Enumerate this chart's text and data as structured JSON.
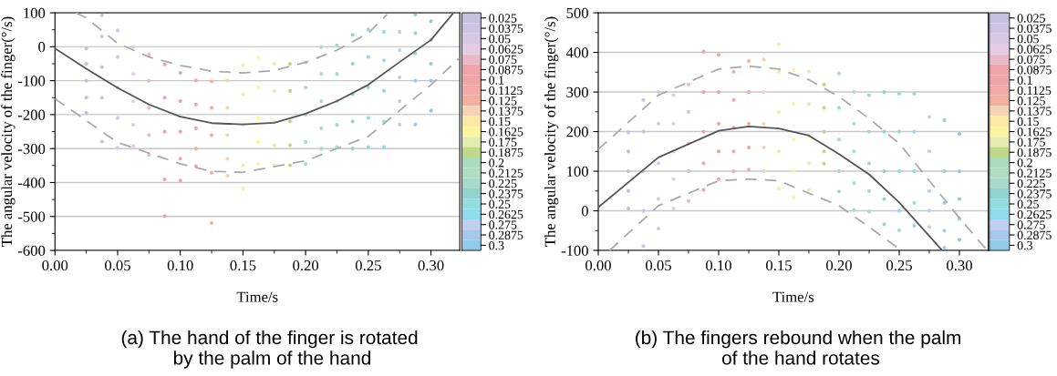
{
  "chart_data": [
    {
      "type": "scatter",
      "title": "(a) The hand of the finger is rotated\n by the palm of the hand",
      "xlabel": "Time/s",
      "ylabel": "The angular velocity of the finger(°/s)",
      "xlim": [
        0,
        0.323
      ],
      "xticks": [
        {
          "value": 0,
          "label": "0.00"
        },
        {
          "value": 0.05,
          "label": "0.05"
        },
        {
          "value": 0.1,
          "label": "0.10"
        },
        {
          "value": 0.15,
          "label": "0.15"
        },
        {
          "value": 0.2,
          "label": "0.20"
        },
        {
          "value": 0.25,
          "label": "0.25"
        },
        {
          "value": 0.3,
          "label": "0.30"
        }
      ],
      "ylim": [
        -600,
        100
      ],
      "yticks": [
        -600,
        -500,
        -400,
        -300,
        -200,
        -100,
        0,
        100
      ],
      "grid": "y",
      "clim": [
        0.30625,
        0.01875
      ],
      "cticks": [
        0.025,
        0.0375,
        0.05,
        0.0625,
        0.075,
        0.0875,
        0.1,
        0.1125,
        0.125,
        0.1375,
        0.15,
        0.1625,
        0.175,
        0.1875,
        0.2,
        0.2125,
        0.225,
        0.2375,
        0.25,
        0.2625,
        0.275,
        0.2875,
        0.3
      ],
      "colors": [
        "#c5c0e0",
        "#cdc3e3",
        "#d8c8e6",
        "#e3cde6",
        "#e9b9c8",
        "#f0a3a8",
        "#f2a5a8",
        "#f4a8a8",
        "#f4b09e",
        "#f7d2b5",
        "#fbe9a6",
        "#fdf59d",
        "#e6ecb1",
        "#bfd98a",
        "#a9dcbd",
        "#b0dcc0",
        "#a9d8cc",
        "#92d3cf",
        "#92dde0",
        "#8fdced",
        "#bfcff0",
        "#a7c8ea",
        "#91cbe8"
      ],
      "series": [
        {
          "marker": "circle",
          "x": [
            0.025,
            0.025,
            0.025,
            0.025,
            0.025,
            0.0375,
            0.0375,
            0.0375,
            0.0375,
            0.0375,
            0.05,
            0.05,
            0.05,
            0.05,
            0.05,
            0.0625,
            0.0625,
            0.0625,
            0.0625,
            0.0625,
            0.075,
            0.075,
            0.075,
            0.075,
            0.075,
            0.0875,
            0.0875,
            0.0875,
            0.0875,
            0.0875,
            0.1,
            0.1,
            0.1,
            0.1,
            0.1,
            0.1125,
            0.1125,
            0.1125,
            0.1125,
            0.1125,
            0.125,
            0.125,
            0.125,
            0.125,
            0.125,
            0.1375,
            0.1375,
            0.1375,
            0.1375,
            0.1375,
            0.15,
            0.15,
            0.15,
            0.15,
            0.15,
            0.1625,
            0.1625,
            0.1625,
            0.1625,
            0.1625,
            0.175,
            0.175,
            0.175,
            0.175,
            0.175,
            0.1875,
            0.1875,
            0.1875,
            0.1875,
            0.1875,
            0.2,
            0.2,
            0.2,
            0.2,
            0.2,
            0.2125,
            0.2125,
            0.2125,
            0.2125,
            0.2125,
            0.225,
            0.225,
            0.225,
            0.225,
            0.225,
            0.2375,
            0.2375,
            0.2375,
            0.2375,
            0.2375,
            0.25,
            0.25,
            0.25,
            0.25,
            0.25,
            0.2625,
            0.2625,
            0.2625,
            0.2625,
            0.2625,
            0.275,
            0.275,
            0.275,
            0.275,
            0.275,
            0.2875,
            0.2875,
            0.2875,
            0.2875,
            0.2875,
            0.3,
            0.3,
            0.3,
            0.3,
            0.3
          ],
          "values": [
            -5,
            -50,
            -100,
            -150,
            -195,
            93,
            30,
            -60,
            -150,
            -280,
            48,
            -30,
            -120,
            -210,
            -298,
            -1,
            -80,
            -160,
            -230,
            -293,
            -23,
            -100,
            -180,
            -260,
            -318,
            -52,
            -150,
            -250,
            -391,
            -499,
            -77,
            -160,
            -250,
            -330,
            -394,
            -99,
            -170,
            -240,
            -300,
            -352,
            -102,
            -180,
            -260,
            -371,
            -519,
            -99,
            -180,
            -260,
            -330,
            -380,
            -54,
            -140,
            -230,
            -349,
            -418,
            -32,
            -120,
            -210,
            -280,
            -345,
            -50,
            -130,
            -220,
            -290,
            -349,
            -50,
            -130,
            -220,
            -290,
            -349,
            -46,
            -120,
            -200,
            -280,
            -345,
            -1,
            -80,
            -160,
            -240,
            -300,
            4,
            -80,
            -160,
            -230,
            -296,
            35,
            -50,
            -140,
            -220,
            -300,
            51,
            -30,
            -120,
            -210,
            -296,
            44,
            -40,
            -130,
            -220,
            -296,
            44,
            -10,
            -90,
            -160,
            -229,
            95,
            40,
            -20,
            -100,
            -229,
            75,
            20,
            -50,
            -100,
            -188
          ],
          "colors": [
            "#c5c0e0",
            "#c5c0e0",
            "#c5c0e0",
            "#c5c0e0",
            "#c5c0e0",
            "#cdc3e3",
            "#cdc3e3",
            "#cdc3e3",
            "#cdc3e3",
            "#cdc3e3",
            "#d8c8e6",
            "#d8c8e6",
            "#d8c8e6",
            "#d8c8e6",
            "#d8c8e6",
            "#e3cde6",
            "#e3cde6",
            "#e3cde6",
            "#e3cde6",
            "#e3cde6",
            "#e9b9c8",
            "#e9b9c8",
            "#e9b9c8",
            "#e9b9c8",
            "#e9b9c8",
            "#f0a3a8",
            "#f0a3a8",
            "#f0a3a8",
            "#f0a3a8",
            "#f0a3a8",
            "#f2a5a8",
            "#f2a5a8",
            "#f2a5a8",
            "#f2a5a8",
            "#f2a5a8",
            "#f4a8a8",
            "#f4a8a8",
            "#f4a8a8",
            "#f4a8a8",
            "#f4a8a8",
            "#f4b09e",
            "#f4b09e",
            "#f4b09e",
            "#f4b09e",
            "#f4b09e",
            "#f7d2b5",
            "#f7d2b5",
            "#f7d2b5",
            "#f7d2b5",
            "#f7d2b5",
            "#fbe9a6",
            "#fbe9a6",
            "#fbe9a6",
            "#fbe9a6",
            "#fbe9a6",
            "#fdf59d",
            "#fdf59d",
            "#fdf59d",
            "#fdf59d",
            "#fdf59d",
            "#e6ecb1",
            "#e6ecb1",
            "#e6ecb1",
            "#e6ecb1",
            "#e6ecb1",
            "#bfd98a",
            "#bfd98a",
            "#bfd98a",
            "#bfd98a",
            "#bfd98a",
            "#a9dcbd",
            "#a9dcbd",
            "#a9dcbd",
            "#a9dcbd",
            "#a9dcbd",
            "#b0dcc0",
            "#b0dcc0",
            "#b0dcc0",
            "#b0dcc0",
            "#b0dcc0",
            "#a9d8cc",
            "#a9d8cc",
            "#a9d8cc",
            "#a9d8cc",
            "#a9d8cc",
            "#92d3cf",
            "#92d3cf",
            "#92d3cf",
            "#92d3cf",
            "#92d3cf",
            "#92dde0",
            "#92dde0",
            "#92dde0",
            "#92dde0",
            "#92dde0",
            "#8fdced",
            "#8fdced",
            "#8fdced",
            "#8fdced",
            "#8fdced",
            "#bfcff0",
            "#bfcff0",
            "#bfcff0",
            "#bfcff0",
            "#bfcff0",
            "#a7c8ea",
            "#a7c8ea",
            "#a7c8ea",
            "#a7c8ea",
            "#a7c8ea",
            "#91cbe8",
            "#91cbe8",
            "#91cbe8",
            "#91cbe8",
            "#91cbe8"
          ]
        },
        {
          "type": "line",
          "marker": "none",
          "color": "#555555",
          "line_style": "solid",
          "x": [
            0,
            0.025,
            0.05,
            0.075,
            0.1,
            0.125,
            0.15,
            0.175,
            0.2,
            0.225,
            0.25,
            0.275,
            0.3,
            0.318
          ],
          "values": [
            -5,
            -65,
            -121,
            -170,
            -206,
            -225,
            -229,
            -224,
            -197,
            -160,
            -112,
            -45,
            20,
            100
          ]
        },
        {
          "type": "line",
          "marker": "none",
          "color": "#aaaaaa",
          "line_style": "dashed",
          "x": [
            0.0166,
            0.025,
            0.05,
            0.075,
            0.1,
            0.125,
            0.15,
            0.175,
            0.2,
            0.225,
            0.25,
            0.265
          ],
          "values": [
            100,
            85,
            10,
            -30,
            -55,
            -72,
            -77,
            -70,
            -46,
            -10,
            40,
            95
          ]
        },
        {
          "type": "line",
          "marker": "none",
          "color": "#aaaaaa",
          "line_style": "dashed",
          "x": [
            0,
            0.05,
            0.1,
            0.125,
            0.15,
            0.2,
            0.25,
            0.3,
            0.323
          ],
          "values": [
            -153,
            -282,
            -345,
            -367,
            -370,
            -336,
            -264,
            -112,
            -32
          ]
        }
      ]
    },
    {
      "type": "scatter",
      "title": "(b) The fingers rebound when the palm\n of the hand rotates",
      "xlabel": "Time/s",
      "ylabel": "The angular velocity of the finger(°/s)",
      "xlim": [
        0,
        0.324
      ],
      "xticks": [
        {
          "value": 0,
          "label": "0.00"
        },
        {
          "value": 0.05,
          "label": "0.05"
        },
        {
          "value": 0.1,
          "label": "0.10"
        },
        {
          "value": 0.15,
          "label": "0.15"
        },
        {
          "value": 0.2,
          "label": "0.20"
        },
        {
          "value": 0.25,
          "label": "0.25"
        },
        {
          "value": 0.3,
          "label": "0.30"
        }
      ],
      "ylim": [
        -100,
        500
      ],
      "yticks": [
        -100,
        0,
        100,
        200,
        300,
        400,
        500
      ],
      "grid": "y",
      "clim": [
        0.30625,
        0.01875
      ],
      "cticks": [
        0.025,
        0.0375,
        0.05,
        0.0625,
        0.075,
        0.0875,
        0.1,
        0.1125,
        0.125,
        0.1375,
        0.15,
        0.1625,
        0.175,
        0.1875,
        0.2,
        0.2125,
        0.225,
        0.2375,
        0.25,
        0.2625,
        0.275,
        0.2875,
        0.3
      ],
      "colors": [
        "#c5c0e0",
        "#cdc3e3",
        "#d8c8e6",
        "#e3cde6",
        "#e9b9c8",
        "#f0a3a8",
        "#f2a5a8",
        "#f4a8a8",
        "#f4b09e",
        "#f7d2b5",
        "#fbe9a6",
        "#fdf59d",
        "#e6ecb1",
        "#bfd98a",
        "#a9dcbd",
        "#b0dcc0",
        "#a9d8cc",
        "#92d3cf",
        "#92dde0",
        "#8fdced",
        "#bfcff0",
        "#a7c8ea",
        "#91cbe8"
      ],
      "series": [
        {
          "marker": "circle",
          "x": [
            0.025,
            0.025,
            0.025,
            0.025,
            0.025,
            0.0375,
            0.0375,
            0.0375,
            0.0375,
            0.0375,
            0.05,
            0.05,
            0.05,
            0.05,
            0.05,
            0.0625,
            0.0625,
            0.0625,
            0.0625,
            0.0625,
            0.075,
            0.075,
            0.075,
            0.075,
            0.075,
            0.0875,
            0.0875,
            0.0875,
            0.0875,
            0.0875,
            0.1,
            0.1,
            0.1,
            0.1,
            0.1,
            0.1125,
            0.1125,
            0.1125,
            0.1125,
            0.1125,
            0.125,
            0.125,
            0.125,
            0.125,
            0.125,
            0.1375,
            0.1375,
            0.1375,
            0.1375,
            0.1375,
            0.15,
            0.15,
            0.15,
            0.15,
            0.15,
            0.1625,
            0.1625,
            0.1625,
            0.1625,
            0.1625,
            0.175,
            0.175,
            0.175,
            0.175,
            0.175,
            0.1875,
            0.1875,
            0.1875,
            0.1875,
            0.1875,
            0.2,
            0.2,
            0.2,
            0.2,
            0.2,
            0.2125,
            0.2125,
            0.2125,
            0.2125,
            0.2125,
            0.225,
            0.225,
            0.225,
            0.225,
            0.225,
            0.2375,
            0.2375,
            0.2375,
            0.2375,
            0.2375,
            0.25,
            0.25,
            0.25,
            0.25,
            0.25,
            0.2625,
            0.2625,
            0.2625,
            0.2625,
            0.2625,
            0.275,
            0.275,
            0.275,
            0.275,
            0.275,
            0.2875,
            0.2875,
            0.2875,
            0.2875,
            0.2875,
            0.3,
            0.3,
            0.3,
            0.3,
            0.3
          ],
          "values": [
            198,
            150,
            100,
            50,
            6,
            280,
            200,
            100,
            0,
            -89,
            300,
            220,
            120,
            30,
            -45,
            292,
            220,
            150,
            80,
            6,
            319,
            250,
            170,
            100,
            25,
            402,
            300,
            200,
            120,
            53,
            394,
            300,
            220,
            150,
            80,
            351,
            280,
            210,
            150,
            100,
            378,
            300,
            220,
            160,
            104,
            382,
            300,
            220,
            160,
            100,
            421,
            351,
            250,
            150,
            56,
            355,
            270,
            180,
            100,
            33,
            351,
            270,
            190,
            120,
            53,
            319,
            260,
            200,
            150,
            119,
            347,
            260,
            180,
            100,
            49,
            300,
            220,
            150,
            70,
            2,
            292,
            200,
            120,
            50,
            -2,
            300,
            200,
            100,
            30,
            -34,
            296,
            200,
            100,
            0,
            -49,
            296,
            200,
            100,
            20,
            -38,
            237,
            150,
            50,
            0,
            -41,
            229,
            100,
            20,
            -50,
            -93,
            194,
            100,
            30,
            -20,
            -73
          ],
          "colors": [
            "#c5c0e0",
            "#c5c0e0",
            "#c5c0e0",
            "#c5c0e0",
            "#c5c0e0",
            "#cdc3e3",
            "#cdc3e3",
            "#cdc3e3",
            "#cdc3e3",
            "#cdc3e3",
            "#d8c8e6",
            "#d8c8e6",
            "#d8c8e6",
            "#d8c8e6",
            "#d8c8e6",
            "#e3cde6",
            "#e3cde6",
            "#e3cde6",
            "#e3cde6",
            "#e3cde6",
            "#e9b9c8",
            "#e9b9c8",
            "#e9b9c8",
            "#e9b9c8",
            "#e9b9c8",
            "#f0a3a8",
            "#f0a3a8",
            "#f0a3a8",
            "#f0a3a8",
            "#f0a3a8",
            "#f2a5a8",
            "#f2a5a8",
            "#f2a5a8",
            "#f2a5a8",
            "#f2a5a8",
            "#f4a8a8",
            "#f4a8a8",
            "#f4a8a8",
            "#f4a8a8",
            "#f4a8a8",
            "#f4b09e",
            "#f4b09e",
            "#f4b09e",
            "#f4b09e",
            "#f4b09e",
            "#f7d2b5",
            "#f7d2b5",
            "#f7d2b5",
            "#f7d2b5",
            "#f7d2b5",
            "#fbe9a6",
            "#fbe9a6",
            "#fbe9a6",
            "#fbe9a6",
            "#fbe9a6",
            "#fdf59d",
            "#fdf59d",
            "#fdf59d",
            "#fdf59d",
            "#fdf59d",
            "#e6ecb1",
            "#e6ecb1",
            "#e6ecb1",
            "#e6ecb1",
            "#e6ecb1",
            "#bfd98a",
            "#bfd98a",
            "#bfd98a",
            "#bfd98a",
            "#bfd98a",
            "#a9dcbd",
            "#a9dcbd",
            "#a9dcbd",
            "#a9dcbd",
            "#a9dcbd",
            "#b0dcc0",
            "#b0dcc0",
            "#b0dcc0",
            "#b0dcc0",
            "#b0dcc0",
            "#a9d8cc",
            "#a9d8cc",
            "#a9d8cc",
            "#a9d8cc",
            "#a9d8cc",
            "#92d3cf",
            "#92d3cf",
            "#92d3cf",
            "#92d3cf",
            "#92d3cf",
            "#92dde0",
            "#92dde0",
            "#92dde0",
            "#92dde0",
            "#92dde0",
            "#8fdced",
            "#8fdced",
            "#8fdced",
            "#8fdced",
            "#8fdced",
            "#bfcff0",
            "#bfcff0",
            "#bfcff0",
            "#bfcff0",
            "#bfcff0",
            "#a7c8ea",
            "#a7c8ea",
            "#a7c8ea",
            "#a7c8ea",
            "#a7c8ea",
            "#91cbe8",
            "#91cbe8",
            "#91cbe8",
            "#91cbe8",
            "#91cbe8"
          ]
        },
        {
          "type": "line",
          "marker": "none",
          "color": "#555555",
          "line_style": "solid",
          "x": [
            0,
            0.05,
            0.1,
            0.125,
            0.15,
            0.175,
            0.2,
            0.225,
            0.25,
            0.2857
          ],
          "values": [
            9,
            135,
            202,
            213,
            208,
            190,
            143,
            92,
            21,
            -100
          ]
        },
        {
          "type": "line",
          "marker": "none",
          "color": "#aaaaaa",
          "line_style": "dashed",
          "x": [
            0,
            0.05,
            0.1,
            0.125,
            0.15,
            0.175,
            0.2,
            0.225,
            0.25,
            0.275,
            0.3,
            0.323
          ],
          "values": [
            155,
            292,
            358,
            365,
            358,
            331,
            288,
            233,
            170,
            76,
            -18,
            -100
          ]
        },
        {
          "type": "line",
          "marker": "none",
          "color": "#aaaaaa",
          "line_style": "dashed",
          "x": [
            0.0094,
            0.05,
            0.1,
            0.125,
            0.15,
            0.2,
            0.225,
            0.25,
            0.2525
          ],
          "values": [
            -100,
            13,
            76,
            80,
            76,
            13,
            -41,
            -96,
            -100
          ]
        }
      ]
    }
  ]
}
